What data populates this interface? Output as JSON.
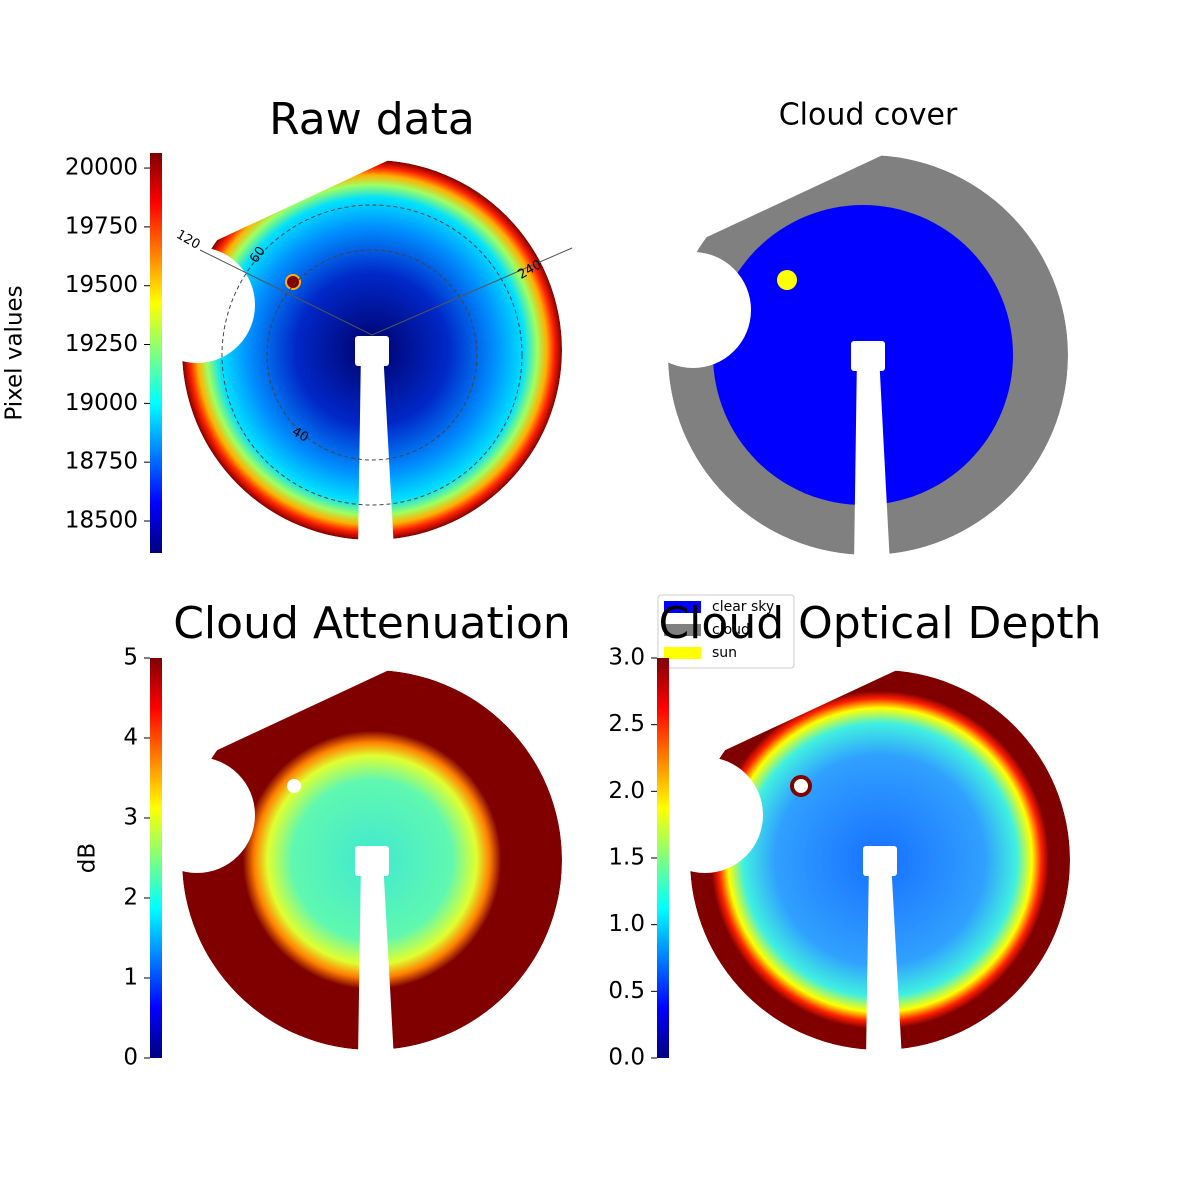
{
  "chart_data": [
    {
      "type": "image",
      "title": "Raw data",
      "ylabel": "Pixel values",
      "colormap": "jet",
      "ylim": [
        18364,
        20064
      ],
      "yticks": [
        18500,
        18750,
        19000,
        19250,
        19500,
        19750,
        20000
      ],
      "annotations": [
        "120",
        "60",
        "240",
        "40"
      ]
    },
    {
      "type": "categorical-image",
      "title": "Cloud cover",
      "series": [
        {
          "name": "clear sky",
          "color": "#0000ff"
        },
        {
          "name": "cloud",
          "color": "#808080"
        },
        {
          "name": "sun",
          "color": "#ffff00"
        }
      ]
    },
    {
      "type": "image",
      "title": "Cloud Attenuation",
      "ylabel": "dB",
      "colormap": "jet",
      "ylim": [
        0,
        5
      ],
      "yticks": [
        0,
        1,
        2,
        3,
        4,
        5
      ]
    },
    {
      "type": "image",
      "title": "Cloud Optical Depth",
      "colormap": "jet",
      "ylim": [
        0,
        3
      ],
      "yticks": [
        {
          "value": 0,
          "label": "0.0"
        },
        0.5,
        {
          "value": 1,
          "label": "1.0"
        },
        1.5,
        {
          "value": 2,
          "label": "2.0"
        },
        2.5,
        {
          "value": 3,
          "label": "3.0"
        }
      ]
    }
  ]
}
